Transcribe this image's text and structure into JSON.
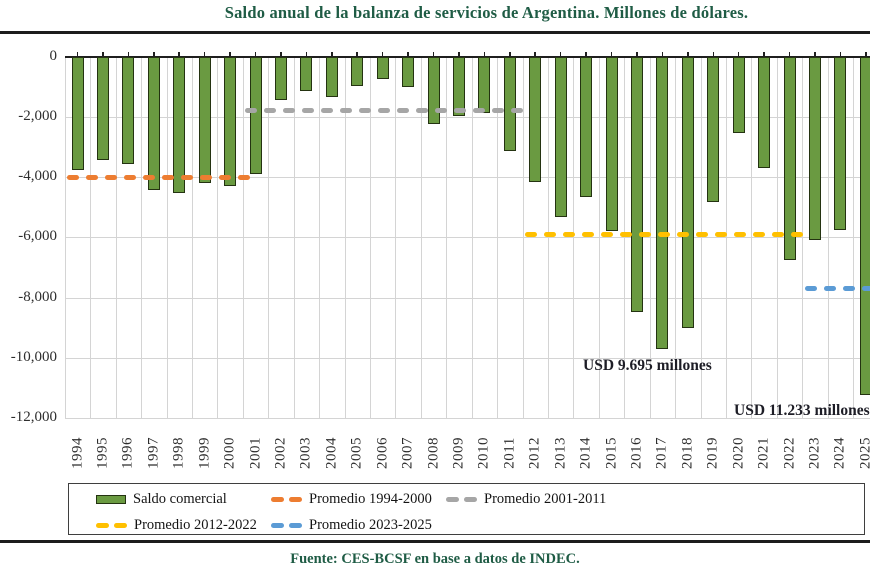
{
  "title": "Saldo anual de la balanza de servicios de Argentina. Millones de dólares.",
  "source": "Fuente: CES-BCSF en base a datos de INDEC.",
  "colors": {
    "bar_fill": "#6A9A41",
    "bar_border": "#243311",
    "title_green": "#1F5C45",
    "promedio_1994_2000": "#ED7D31",
    "promedio_2001_2011": "#A6A6A6",
    "promedio_2012_2022": "#FFC000",
    "promedio_2023_2025": "#5B9BD5",
    "gridline": "#D4D4D4"
  },
  "chart_data": {
    "type": "bar",
    "title": "Saldo anual de la balanza de servicios de Argentina. Millones de dólares.",
    "xlabel": "",
    "ylabel": "",
    "unit": "millones de dólares",
    "ylim": [
      -12000,
      0
    ],
    "grid": true,
    "legend_position": "bottom",
    "y_ticks": [
      0,
      -2000,
      -4000,
      -6000,
      -8000,
      -10000,
      -12000
    ],
    "y_tick_labels": [
      "0",
      "-2,000",
      "-4,000",
      "-6,000",
      "-8,000",
      "-10,000",
      "-12,000"
    ],
    "categories": [
      1994,
      1995,
      1996,
      1997,
      1998,
      1999,
      2000,
      2001,
      2002,
      2003,
      2004,
      2005,
      2006,
      2007,
      2008,
      2009,
      2010,
      2011,
      2012,
      2013,
      2014,
      2015,
      2016,
      2017,
      2018,
      2019,
      2020,
      2021,
      2022,
      2023,
      2024,
      2025
    ],
    "series": [
      {
        "name": "Saldo comercial",
        "values": [
          -3780,
          -3440,
          -3550,
          -4440,
          -4520,
          -4200,
          -4310,
          -3900,
          -1440,
          -1130,
          -1350,
          -970,
          -760,
          -1020,
          -2250,
          -1960,
          -1880,
          -3150,
          -4150,
          -5310,
          -4650,
          -5780,
          -8480,
          -9695,
          -9000,
          -4840,
          -2550,
          -3710,
          -6750,
          -6090,
          -5760,
          -11233
        ]
      }
    ],
    "promedios": [
      {
        "label": "Promedio 1994-2000",
        "value": -4000,
        "from": 1994,
        "to": 2000,
        "color": "#ED7D31"
      },
      {
        "label": "Promedio 2001-2011",
        "value": -1800,
        "from": 2001,
        "to": 2011,
        "color": "#A6A6A6"
      },
      {
        "label": "Promedio 2012-2022",
        "value": -5900,
        "from": 2012,
        "to": 2022,
        "color": "#FFC000"
      },
      {
        "label": "Promedio 2023-2025",
        "value": -7700,
        "from": 2023,
        "to": 2025,
        "color": "#5B9BD5"
      }
    ],
    "annotations": [
      {
        "text": "USD 9.695 millones",
        "year": 2017
      },
      {
        "text": "USD 11.233 millones",
        "year": 2025
      }
    ]
  },
  "legend": {
    "items": [
      {
        "type": "bar",
        "label": "Saldo comercial",
        "color": "#6A9A41"
      },
      {
        "type": "dash",
        "label": "Promedio 1994-2000",
        "color": "#ED7D31"
      },
      {
        "type": "dash",
        "label": "Promedio 2001-2011",
        "color": "#A6A6A6"
      },
      {
        "type": "dash",
        "label": "Promedio 2012-2022",
        "color": "#FFC000"
      },
      {
        "type": "dash",
        "label": "Promedio 2023-2025",
        "color": "#5B9BD5"
      }
    ]
  }
}
